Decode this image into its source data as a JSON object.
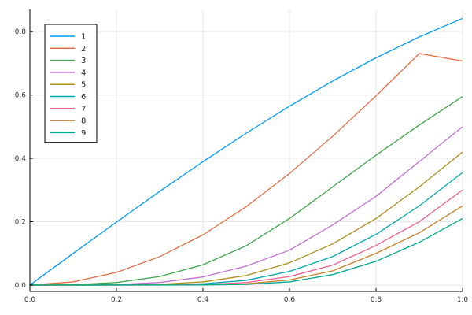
{
  "chart_data": {
    "type": "line",
    "title": "",
    "xlabel": "",
    "ylabel": "",
    "xlim": [
      0,
      1
    ],
    "ylim": [
      -0.02,
      0.87
    ],
    "x_ticks": [
      0.0,
      0.2,
      0.4,
      0.6,
      0.8,
      1.0
    ],
    "x_tick_labels": [
      "0.0",
      "0.2",
      "0.4",
      "0.6",
      "0.8",
      "1.0"
    ],
    "y_ticks": [
      0.0,
      0.2,
      0.4,
      0.6,
      0.8
    ],
    "y_tick_labels": [
      "0.0",
      "0.2",
      "0.4",
      "0.6",
      "0.8"
    ],
    "grid": true,
    "legend_position": "top-left",
    "x": [
      0.0,
      0.1,
      0.2,
      0.3,
      0.4,
      0.5,
      0.6,
      0.7,
      0.8,
      0.9,
      1.0
    ],
    "series": [
      {
        "name": "1",
        "color": "#009af9",
        "values": [
          0.0,
          0.0998,
          0.1987,
          0.2955,
          0.3894,
          0.4794,
          0.5646,
          0.6442,
          0.7174,
          0.7833,
          0.8415
        ]
      },
      {
        "name": "2",
        "color": "#e26f46",
        "values": [
          0.0,
          0.01,
          0.04,
          0.0895,
          0.1584,
          0.2474,
          0.3523,
          0.4699,
          0.5971,
          0.7308,
          0.7071
        ]
      },
      {
        "name": "3",
        "color": "#3da44d",
        "values": [
          0.0,
          0.001,
          0.008,
          0.027,
          0.064,
          0.124,
          0.21,
          0.31,
          0.41,
          0.505,
          0.595
        ]
      },
      {
        "name": "4",
        "color": "#c271d2",
        "values": [
          0.0,
          0.0001,
          0.0016,
          0.0081,
          0.0256,
          0.06,
          0.11,
          0.19,
          0.28,
          0.39,
          0.5
        ]
      },
      {
        "name": "5",
        "color": "#ac8d18",
        "values": [
          0.0,
          0.0,
          0.0003,
          0.0024,
          0.01,
          0.03,
          0.07,
          0.13,
          0.21,
          0.31,
          0.42
        ]
      },
      {
        "name": "6",
        "color": "#00a9ad",
        "values": [
          0.0,
          0.0,
          0.0001,
          0.0007,
          0.004,
          0.015,
          0.043,
          0.09,
          0.16,
          0.25,
          0.355
        ]
      },
      {
        "name": "7",
        "color": "#ed5e93",
        "values": [
          0.0,
          0.0,
          0.0,
          0.0002,
          0.0016,
          0.008,
          0.027,
          0.063,
          0.125,
          0.2,
          0.3
        ]
      },
      {
        "name": "8",
        "color": "#c68125",
        "values": [
          0.0,
          0.0,
          0.0,
          0.0001,
          0.0007,
          0.004,
          0.016,
          0.045,
          0.1,
          0.165,
          0.25
        ]
      },
      {
        "name": "9",
        "color": "#00a98d",
        "values": [
          0.0,
          0.0,
          0.0,
          0.0,
          0.0003,
          0.002,
          0.01,
          0.033,
          0.075,
          0.135,
          0.21
        ]
      }
    ]
  }
}
